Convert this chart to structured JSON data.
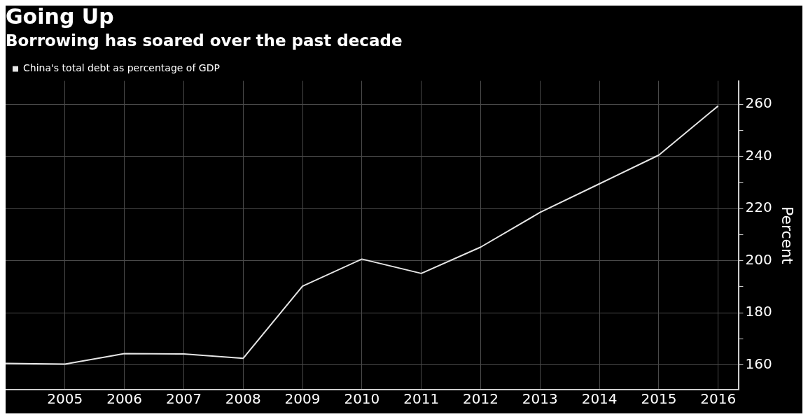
{
  "chart_data": {
    "type": "line",
    "title": "Going Up",
    "subtitle": "Borrowing has soared over the past decade",
    "ylabel": "Percent",
    "x": [
      2004,
      2005,
      2006,
      2007,
      2008,
      2009,
      2010,
      2011,
      2012,
      2013,
      2014,
      2015,
      2016
    ],
    "series": [
      {
        "name": "China's total debt as percentage of GDP",
        "color": "#e6e6e6",
        "values": [
          160.6,
          160.3,
          164.3,
          164.2,
          162.5,
          190.2,
          200.6,
          195.1,
          205.2,
          218.5,
          229.5,
          240.5,
          259.4
        ]
      }
    ],
    "xlim": [
      2004,
      2016.35
    ],
    "xticks": [
      2005,
      2006,
      2007,
      2008,
      2009,
      2010,
      2011,
      2012,
      2013,
      2014,
      2015,
      2016
    ],
    "ylim": [
      150.5,
      269
    ],
    "yticks": [
      160,
      {
        "value": 170,
        "label": null
      },
      180,
      {
        "value": 190,
        "label": null
      },
      200,
      {
        "value": 210,
        "label": null
      },
      220,
      {
        "value": 230,
        "label": null
      },
      240,
      {
        "value": 250,
        "label": null
      },
      260
    ],
    "grid": true,
    "legend": "top left",
    "marker": "none",
    "line_style": "solid"
  }
}
